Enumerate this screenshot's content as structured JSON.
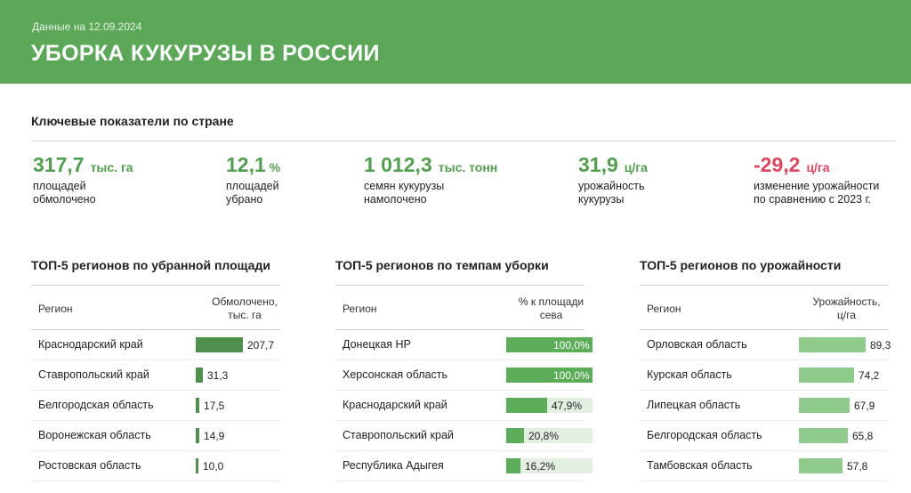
{
  "header": {
    "date": "Данные на 12.09.2024",
    "title": "УБОРКА КУКУРУЗЫ В РОССИИ"
  },
  "key_indicators": {
    "title": "Ключевые показатели по стране",
    "metrics": [
      {
        "value": "317,7",
        "unit": "тыс. га",
        "desc1": "площадей",
        "desc2": "обмолочено",
        "negative": false
      },
      {
        "value": "12,1",
        "unit": "%",
        "desc1": "площадей",
        "desc2": "убрано",
        "negative": false
      },
      {
        "value": "1 012,3",
        "unit": "тыс. тонн",
        "desc1": "семян кукурузы",
        "desc2": "намолочено",
        "negative": false
      },
      {
        "value": "31,9",
        "unit": "ц/га",
        "desc1": "урожайность",
        "desc2": "кукурузы",
        "negative": false
      },
      {
        "value": "-29,2",
        "unit": "ц/га",
        "desc1": "изменение урожайности",
        "desc2": "по сравнению с 2023 г.",
        "negative": true
      }
    ]
  },
  "colors": {
    "header_bg": "#5ba858",
    "accent_green": "#4f9f4c",
    "negative_red": "#e0455e",
    "bar_dark": "#4e8f4c",
    "bar_mid": "#5cad57",
    "bar_light": "#8fcb8a",
    "bar_track": "#e3efe1"
  },
  "tables": [
    {
      "title": "ТОП-5 регионов по убранной площади",
      "col_region": "Регион",
      "col_value_1": "Обмолочено,",
      "col_value_2": "тыс. га",
      "bar_color": "#4e8f4c",
      "max": 207.7,
      "rows": [
        {
          "region": "Краснодарский край",
          "value": 207.7,
          "label": "207,7"
        },
        {
          "region": "Ставропольский край",
          "value": 31.3,
          "label": "31,3"
        },
        {
          "region": "Белгородская область",
          "value": 17.5,
          "label": "17,5"
        },
        {
          "region": "Воронежская область",
          "value": 14.9,
          "label": "14,9"
        },
        {
          "region": "Ростовская область",
          "value": 10.0,
          "label": "10,0"
        }
      ]
    },
    {
      "title": "ТОП-5 регионов по темпам уборки",
      "col_region": "Регион",
      "col_value_1": "% к площади",
      "col_value_2": "сева",
      "bar_color": "#5cad57",
      "max": 100,
      "track": true,
      "rows": [
        {
          "region": "Донецкая НР",
          "value": 100.0,
          "label": "100,0%"
        },
        {
          "region": "Херсонская область",
          "value": 100.0,
          "label": "100,0%"
        },
        {
          "region": "Краснодарский край",
          "value": 47.9,
          "label": "47,9%"
        },
        {
          "region": "Ставропольский край",
          "value": 20.8,
          "label": "20,8%"
        },
        {
          "region": "Республика Адыгея",
          "value": 16.2,
          "label": "16,2%"
        }
      ]
    },
    {
      "title": "ТОП-5 регионов по урожайности",
      "col_region": "Регион",
      "col_value_1": "Урожайность,",
      "col_value_2": "ц/га",
      "bar_color": "#8fcb8a",
      "max": 89.3,
      "rows": [
        {
          "region": "Орловская область",
          "value": 89.3,
          "label": "89,3"
        },
        {
          "region": "Курская область",
          "value": 74.2,
          "label": "74,2"
        },
        {
          "region": "Липецкая область",
          "value": 67.9,
          "label": "67,9"
        },
        {
          "region": "Белгородская область",
          "value": 65.8,
          "label": "65,8"
        },
        {
          "region": "Тамбовская область",
          "value": 57.8,
          "label": "57,8"
        }
      ]
    }
  ]
}
